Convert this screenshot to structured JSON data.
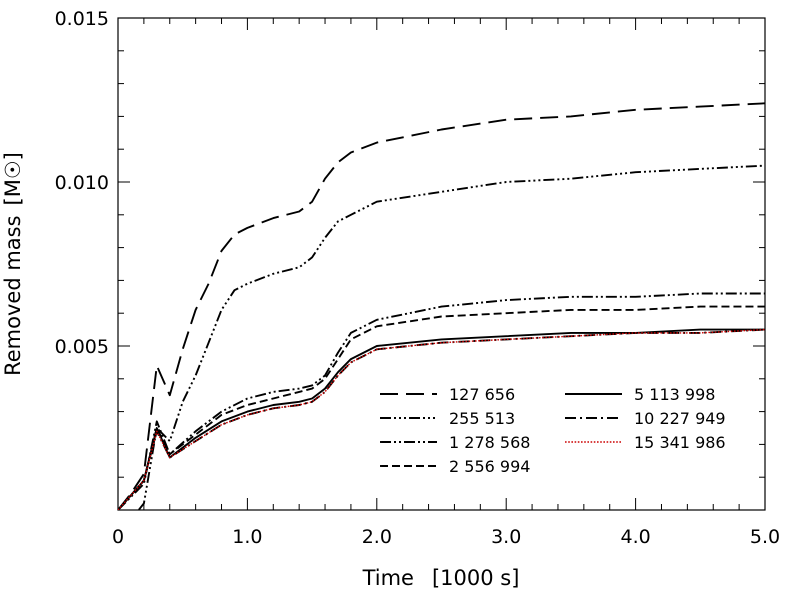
{
  "chart_data": {
    "type": "line",
    "xlabel": "Time",
    "xlabel_unit": "[1000 s]",
    "ylabel": "Removed  mass",
    "ylabel_unit": "[M☉]",
    "xlim": [
      0,
      5.0
    ],
    "ylim": [
      0,
      0.015
    ],
    "x_ticks": [
      "0",
      "1.0",
      "2.0",
      "3.0",
      "4.0",
      "5.0"
    ],
    "y_ticks": [
      "0.005",
      "0.010",
      "0.015"
    ],
    "grid": false,
    "legend_position": "lower-right",
    "series": [
      {
        "name": "127 656",
        "style": "long-dash",
        "color": "#000000",
        "x": [
          0.0,
          0.1,
          0.2,
          0.3,
          0.4,
          0.5,
          0.6,
          0.7,
          0.8,
          0.9,
          1.0,
          1.2,
          1.4,
          1.5,
          1.6,
          1.7,
          1.8,
          2.0,
          2.5,
          3.0,
          3.5,
          4.0,
          4.5,
          5.0
        ],
        "y": [
          0.0,
          0.0005,
          0.0011,
          0.0044,
          0.0035,
          0.0049,
          0.0061,
          0.0069,
          0.0079,
          0.0084,
          0.0086,
          0.0089,
          0.0091,
          0.0094,
          0.0101,
          0.0106,
          0.0109,
          0.0112,
          0.0116,
          0.0119,
          0.012,
          0.0122,
          0.0123,
          0.0124
        ]
      },
      {
        "name": "255 513",
        "style": "dash-dot-dot-dot",
        "color": "#000000",
        "x": [
          0.0,
          0.1,
          0.2,
          0.3,
          0.4,
          0.5,
          0.6,
          0.7,
          0.8,
          0.9,
          1.0,
          1.2,
          1.4,
          1.5,
          1.6,
          1.7,
          1.8,
          2.0,
          2.5,
          3.0,
          3.5,
          4.0,
          4.5,
          5.0
        ],
        "y": [
          0.0,
          -0.0003,
          0.0002,
          0.0025,
          0.0021,
          0.0033,
          0.0041,
          0.0051,
          0.0061,
          0.0067,
          0.0069,
          0.0072,
          0.0074,
          0.0077,
          0.0083,
          0.0088,
          0.009,
          0.0094,
          0.0097,
          0.01,
          0.0101,
          0.0103,
          0.0104,
          0.0105
        ]
      },
      {
        "name": "1 278 568",
        "style": "dash-dot-dot",
        "color": "#000000",
        "x": [
          0.0,
          0.2,
          0.3,
          0.4,
          0.6,
          0.8,
          1.0,
          1.2,
          1.4,
          1.5,
          1.6,
          1.7,
          1.8,
          2.0,
          2.5,
          3.0,
          3.5,
          4.0,
          4.5,
          5.0
        ],
        "y": [
          0.0,
          0.0008,
          0.0027,
          0.0017,
          0.0024,
          0.003,
          0.0034,
          0.0036,
          0.0037,
          0.0038,
          0.0041,
          0.0048,
          0.0054,
          0.0058,
          0.0062,
          0.0064,
          0.0065,
          0.0065,
          0.0066,
          0.0066
        ]
      },
      {
        "name": "2 556 994",
        "style": "short-dash",
        "color": "#000000",
        "x": [
          0.0,
          0.2,
          0.3,
          0.4,
          0.6,
          0.8,
          1.0,
          1.2,
          1.4,
          1.5,
          1.6,
          1.7,
          1.8,
          2.0,
          2.5,
          3.0,
          3.5,
          4.0,
          4.5,
          5.0
        ],
        "y": [
          0.0,
          0.0009,
          0.0025,
          0.0017,
          0.0023,
          0.0029,
          0.0032,
          0.0034,
          0.0036,
          0.0037,
          0.004,
          0.0046,
          0.0052,
          0.0056,
          0.0059,
          0.006,
          0.0061,
          0.0061,
          0.0062,
          0.0062
        ]
      },
      {
        "name": "5 113 998",
        "style": "solid",
        "color": "#000000",
        "x": [
          0.0,
          0.2,
          0.3,
          0.4,
          0.6,
          0.8,
          1.0,
          1.2,
          1.4,
          1.5,
          1.6,
          1.7,
          1.8,
          2.0,
          2.5,
          3.0,
          3.5,
          4.0,
          4.5,
          5.0
        ],
        "y": [
          0.0,
          0.0009,
          0.0025,
          0.0016,
          0.0022,
          0.0027,
          0.003,
          0.0032,
          0.0033,
          0.0034,
          0.0037,
          0.0042,
          0.0046,
          0.005,
          0.0052,
          0.0053,
          0.0054,
          0.0054,
          0.0055,
          0.0055
        ]
      },
      {
        "name": "10 227 949",
        "style": "dash-dot",
        "color": "#000000",
        "x": [
          0.0,
          0.2,
          0.3,
          0.4,
          0.6,
          0.8,
          1.0,
          1.2,
          1.4,
          1.5,
          1.6,
          1.7,
          1.8,
          2.0,
          2.5,
          3.0,
          3.5,
          4.0,
          4.5,
          5.0
        ],
        "y": [
          0.0,
          0.0009,
          0.0024,
          0.0016,
          0.0021,
          0.0026,
          0.0029,
          0.0031,
          0.0032,
          0.0033,
          0.0036,
          0.0041,
          0.0045,
          0.0049,
          0.0051,
          0.0052,
          0.0053,
          0.0054,
          0.0054,
          0.0055
        ]
      },
      {
        "name": "15 341 986",
        "style": "dotted",
        "color": "#cc0000",
        "x": [
          0.0,
          0.2,
          0.3,
          0.4,
          0.6,
          0.8,
          1.0,
          1.2,
          1.4,
          1.5,
          1.6,
          1.7,
          1.8,
          2.0,
          2.5,
          3.0,
          3.5,
          4.0,
          4.5,
          5.0
        ],
        "y": [
          0.0,
          0.0009,
          0.0024,
          0.0016,
          0.0021,
          0.0026,
          0.0029,
          0.0031,
          0.0032,
          0.0033,
          0.0036,
          0.0041,
          0.0045,
          0.0049,
          0.0051,
          0.0052,
          0.0053,
          0.0054,
          0.0054,
          0.0055
        ]
      }
    ]
  }
}
